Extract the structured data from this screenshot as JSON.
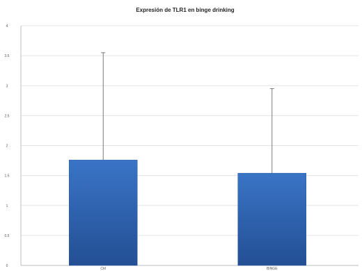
{
  "chart_data": {
    "type": "bar",
    "title": "Expresión de TLR1 en binge drinking",
    "xlabel": "",
    "ylabel": "",
    "categories": [
      "Ctrl",
      "BINGE"
    ],
    "series": [
      {
        "values": [
          1.76,
          1.54
        ],
        "error_upper": [
          3.55,
          2.95
        ],
        "color": "#2f66b3"
      }
    ],
    "ylim": [
      0,
      4
    ],
    "yticks": [
      0,
      0.5,
      1,
      1.5,
      2,
      2.5,
      3,
      3.5,
      4
    ],
    "ytick_labels": [
      "0",
      "0.5",
      "1",
      "1.5",
      "2",
      "2.5",
      "3",
      "3.5",
      "4"
    ],
    "grid": true,
    "legend": "none"
  }
}
